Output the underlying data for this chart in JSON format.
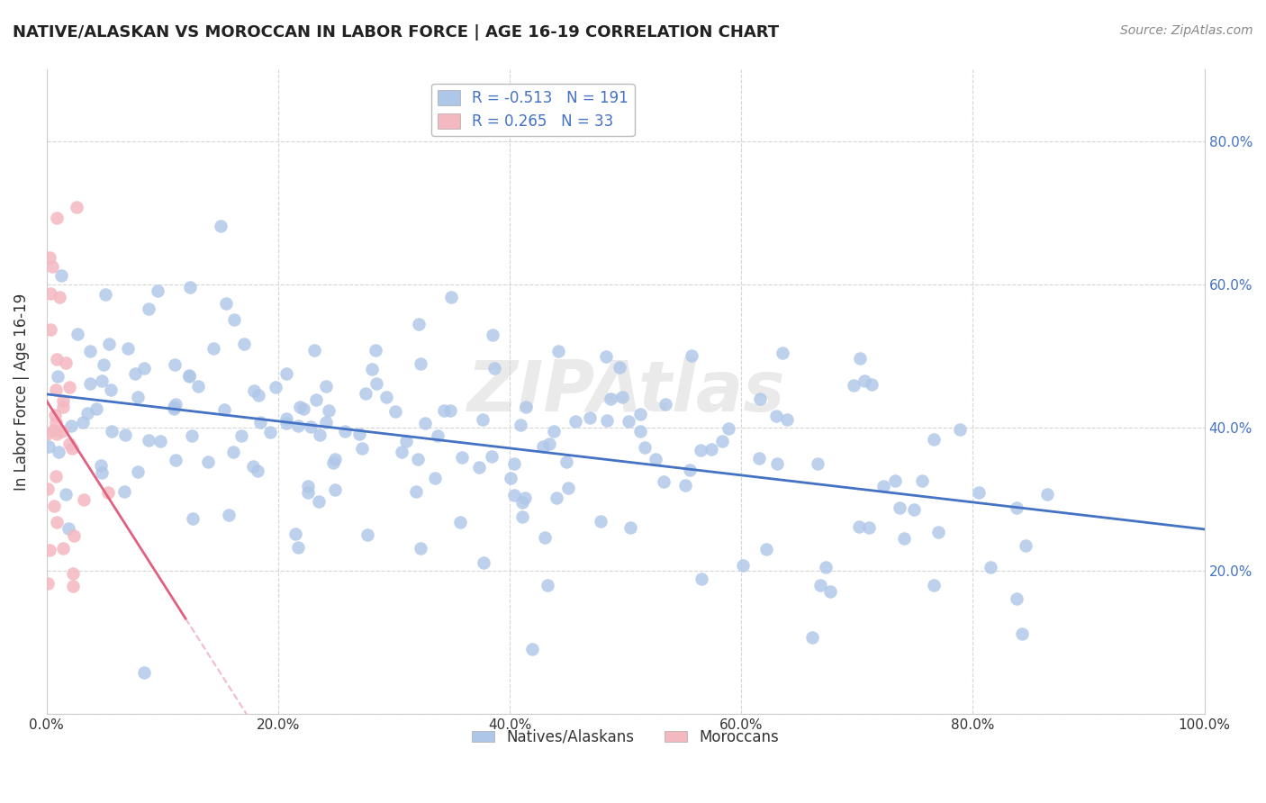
{
  "title": "NATIVE/ALASKAN VS MOROCCAN IN LABOR FORCE | AGE 16-19 CORRELATION CHART",
  "source": "Source: ZipAtlas.com",
  "ylabel": "In Labor Force | Age 16-19",
  "xlim": [
    0.0,
    1.0
  ],
  "ylim": [
    0.0,
    0.9
  ],
  "x_ticks": [
    0.0,
    0.2,
    0.4,
    0.6,
    0.8,
    1.0
  ],
  "x_tick_labels": [
    "0.0%",
    "20.0%",
    "40.0%",
    "60.0%",
    "80.0%",
    "100.0%"
  ],
  "y_ticks": [
    0.0,
    0.2,
    0.4,
    0.6,
    0.8
  ],
  "y_tick_labels": [
    "",
    "20.0%",
    "40.0%",
    "60.0%",
    "80.0%"
  ],
  "native_color": "#aec6e8",
  "moroccan_color": "#f4b8c1",
  "native_line_color": "#4472c4",
  "moroccan_line_color": "#e06080",
  "moroccan_line_dashed_color": "#f0a0b0",
  "native_R": -0.513,
  "native_N": 191,
  "moroccan_R": 0.265,
  "moroccan_N": 33,
  "watermark": "ZIPAtlas",
  "background_color": "#ffffff",
  "grid_color": "#cccccc",
  "legend_label_native": "Natives/Alaskans",
  "legend_label_moroccan": "Moroccans",
  "tick_label_color": "#4472c4"
}
